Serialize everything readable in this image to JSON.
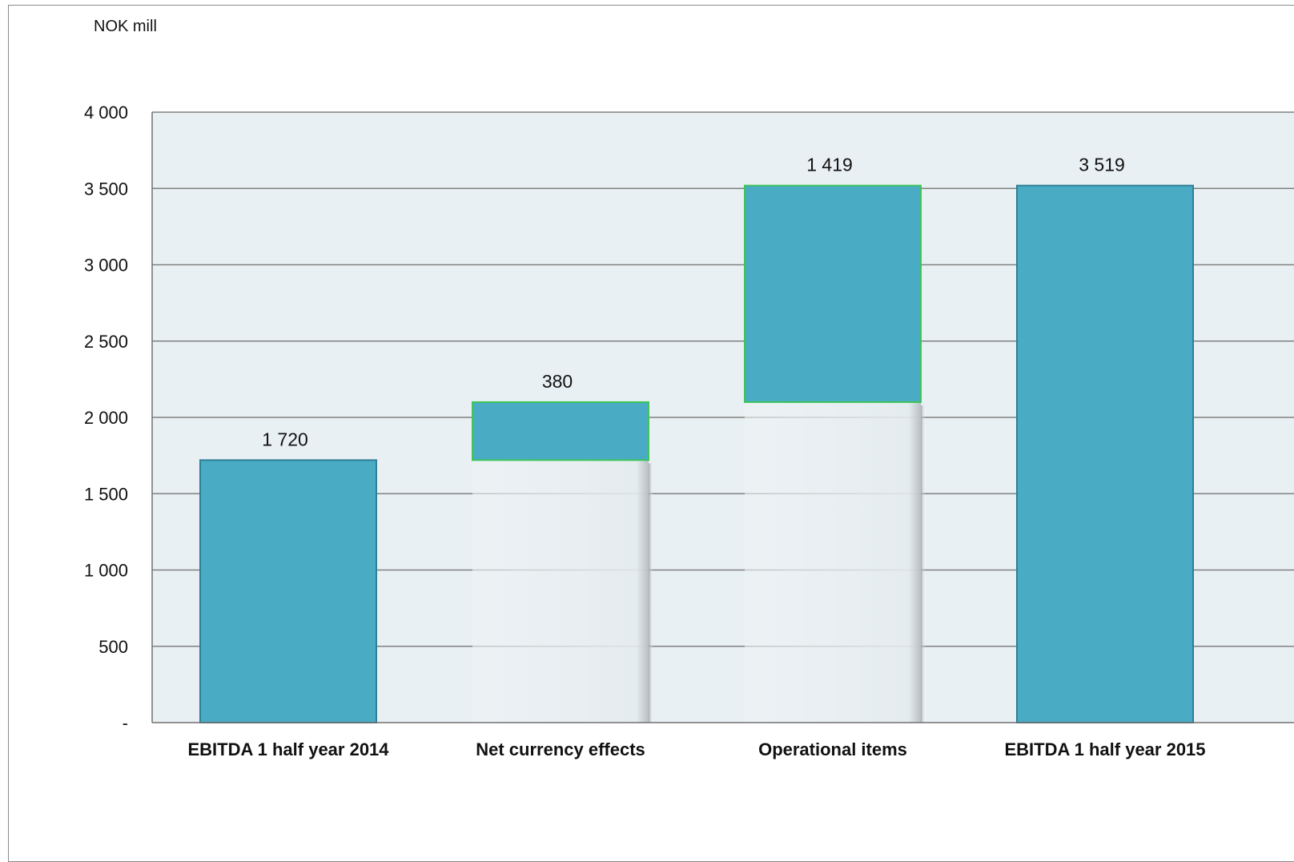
{
  "chart_data": {
    "type": "bar",
    "subtype": "waterfall",
    "unit_label": "NOK mill",
    "categories": [
      "EBITDA 1 half year 2014",
      "Net currency effects",
      "Operational items",
      "EBITDA 1 half year 2015"
    ],
    "values": [
      1720,
      380,
      1419,
      3519
    ],
    "bases": [
      0,
      1720,
      2100,
      0
    ],
    "data_labels": [
      "1 720",
      "380",
      "1 419",
      "3 519"
    ],
    "y_ticks": [
      {
        "value": 0,
        "label": "-"
      },
      {
        "value": 500,
        "label": "500"
      },
      {
        "value": 1000,
        "label": "1 000"
      },
      {
        "value": 1500,
        "label": "1 500"
      },
      {
        "value": 2000,
        "label": "2 000"
      },
      {
        "value": 2500,
        "label": "2 500"
      },
      {
        "value": 3000,
        "label": "3 000"
      },
      {
        "value": 3500,
        "label": "3 500"
      },
      {
        "value": 4000,
        "label": "4 000"
      }
    ],
    "ylim": [
      0,
      4000
    ],
    "grid": true,
    "colors": {
      "bar_fill": "#4aabc5",
      "total_border": "#2f7f96",
      "step_border": "#3ec45a",
      "plot_bg": "#e9f0f3",
      "gridline": "#808080"
    }
  }
}
